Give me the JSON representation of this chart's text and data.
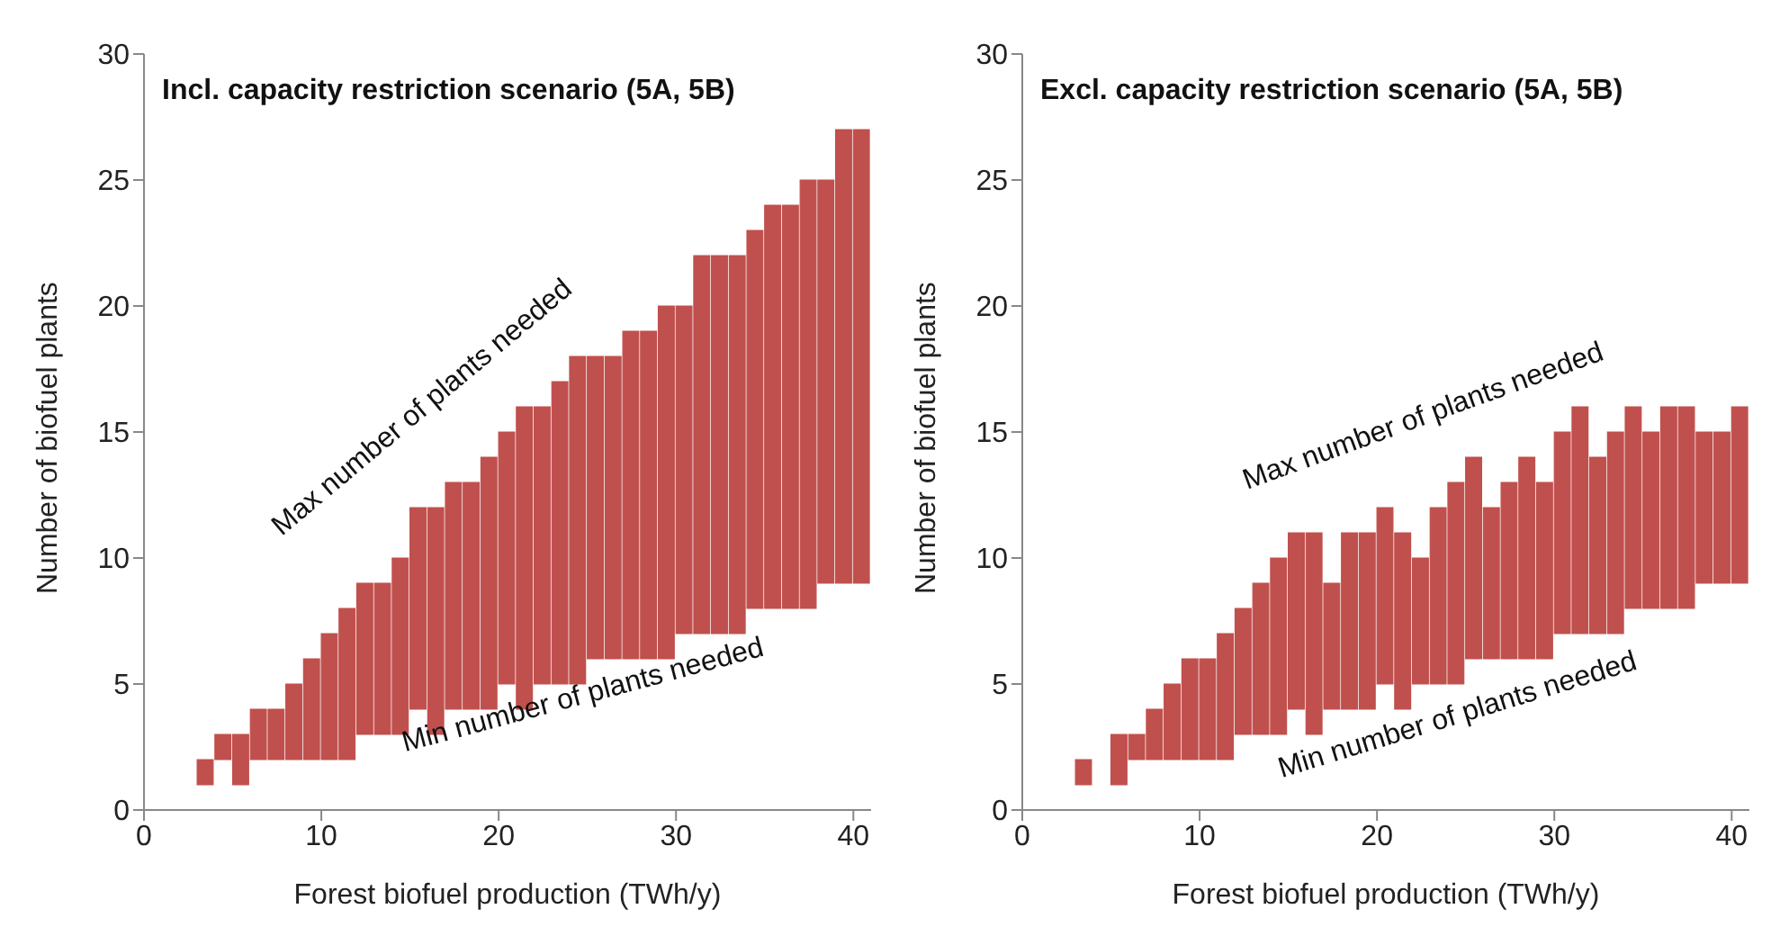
{
  "chart_data": [
    {
      "type": "bar",
      "title": "Incl. capacity restriction scenario (5A, 5B)",
      "xlabel": "Forest biofuel production (TWh/y)",
      "ylabel": "Number of biofuel plants",
      "x": [
        3.5,
        4.5,
        5.5,
        6.5,
        7.5,
        8.5,
        9.5,
        10.5,
        11.5,
        12.5,
        13.5,
        14.5,
        15.5,
        16.5,
        17.5,
        18.5,
        19.5,
        20.5,
        21.5,
        22.5,
        23.5,
        24.5,
        25.5,
        26.5,
        27.5,
        28.5,
        29.5,
        30.5,
        31.5,
        32.5,
        33.5,
        34.5,
        35.5,
        36.5,
        37.5,
        38.5,
        39.5,
        40.5
      ],
      "base": [
        1,
        2,
        1,
        2,
        2,
        2,
        2,
        2,
        2,
        3,
        3,
        3,
        4,
        3,
        4,
        4,
        4,
        5,
        4,
        5,
        5,
        5,
        6,
        6,
        6,
        6,
        6,
        7,
        7,
        7,
        7,
        8,
        8,
        8,
        8,
        9,
        9,
        9
      ],
      "values": [
        1,
        1,
        2,
        2,
        2,
        3,
        4,
        5,
        6,
        6,
        6,
        7,
        8,
        9,
        9,
        9,
        10,
        10,
        12,
        11,
        12,
        13,
        12,
        12,
        13,
        13,
        14,
        13,
        15,
        15,
        15,
        15,
        16,
        16,
        17,
        16,
        18,
        18
      ],
      "color": "#c0504d",
      "xlim": [
        0,
        41
      ],
      "xticks": [
        0,
        10,
        20,
        30,
        40
      ],
      "ylim": [
        0,
        30
      ],
      "yticks": [
        0,
        5,
        10,
        15,
        20,
        25,
        30
      ],
      "grid": false,
      "legend": false,
      "annotations": [
        "Max number of plants needed",
        "Min number of plants needed"
      ]
    },
    {
      "type": "bar",
      "title": "Excl. capacity restriction scenario (5A, 5B)",
      "xlabel": "Forest biofuel production (TWh/y)",
      "ylabel": "Number of biofuel plants",
      "x": [
        3.5,
        4.5,
        5.5,
        6.5,
        7.5,
        8.5,
        9.5,
        10.5,
        11.5,
        12.5,
        13.5,
        14.5,
        15.5,
        16.5,
        17.5,
        18.5,
        19.5,
        20.5,
        21.5,
        22.5,
        23.5,
        24.5,
        25.5,
        26.5,
        27.5,
        28.5,
        29.5,
        30.5,
        31.5,
        32.5,
        33.5,
        34.5,
        35.5,
        36.5,
        37.5,
        38.5,
        39.5,
        40.5
      ],
      "base": [
        1,
        null,
        1,
        2,
        2,
        2,
        2,
        2,
        2,
        3,
        3,
        3,
        4,
        3,
        4,
        4,
        4,
        5,
        4,
        5,
        5,
        5,
        6,
        6,
        6,
        6,
        6,
        7,
        7,
        7,
        7,
        8,
        8,
        8,
        8,
        9,
        9,
        9
      ],
      "values": [
        1,
        null,
        2,
        1,
        2,
        3,
        4,
        4,
        5,
        5,
        6,
        7,
        7,
        8,
        5,
        7,
        7,
        7,
        7,
        5,
        7,
        8,
        8,
        6,
        7,
        8,
        7,
        8,
        9,
        7,
        8,
        8,
        7,
        8,
        8,
        6,
        6,
        7
      ],
      "color": "#c0504d",
      "xlim": [
        0,
        41
      ],
      "xticks": [
        0,
        10,
        20,
        30,
        40
      ],
      "ylim": [
        0,
        30
      ],
      "yticks": [
        0,
        5,
        10,
        15,
        20,
        25,
        30
      ],
      "grid": false,
      "legend": false,
      "annotations": [
        "Max number of plants needed",
        "Min number of plants needed"
      ]
    }
  ]
}
